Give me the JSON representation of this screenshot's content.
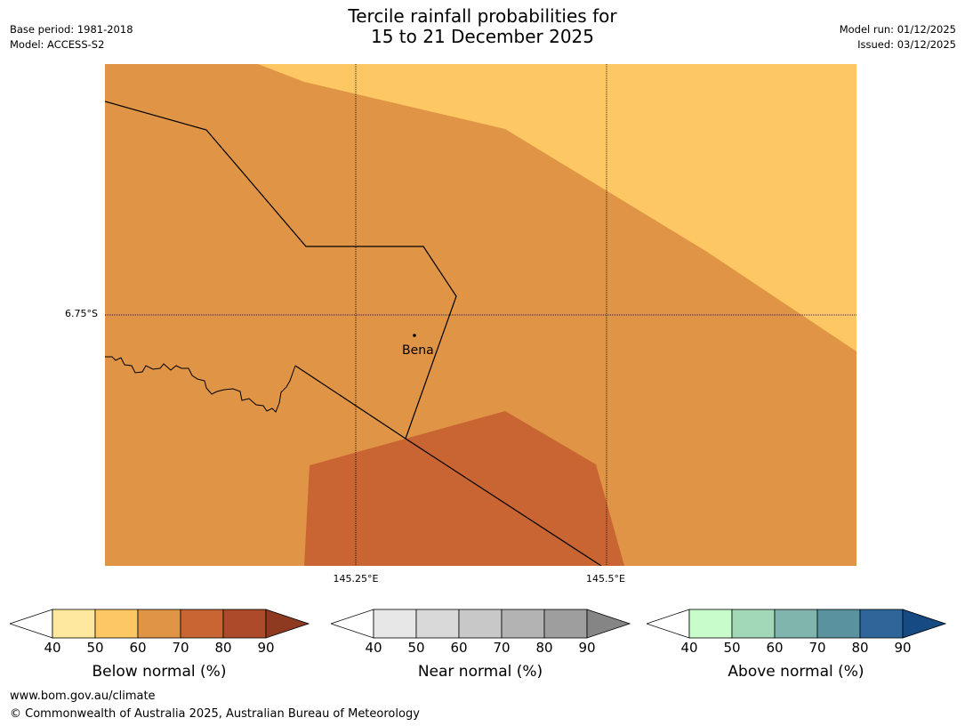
{
  "title": {
    "line1": "Tercile rainfall probabilities for",
    "line2": "15 to 21 December 2025"
  },
  "meta": {
    "base_period": "Base period: 1981-2018",
    "model": "Model: ACCESS-S2",
    "model_run": "Model run: 01/12/2025",
    "issued": "Issued: 03/12/2025"
  },
  "map": {
    "lat_label": "6.75°S",
    "lon_labels": [
      "145.25°E",
      "145.5°E"
    ],
    "place_label": "Bena",
    "colors": {
      "below_50_60": "#fdc863",
      "below_60_70": "#e09446",
      "below_70_80": "#c96532",
      "boundary": "#000000"
    }
  },
  "colorbars": [
    {
      "title": "Below normal (%)",
      "ticks": [
        "40",
        "50",
        "60",
        "70",
        "80",
        "90"
      ],
      "colors": [
        "#fee89e",
        "#fdc863",
        "#e09446",
        "#c96532",
        "#ac4a29"
      ],
      "over_color": "#8e3a20"
    },
    {
      "title": "Near normal (%)",
      "ticks": [
        "40",
        "50",
        "60",
        "70",
        "80",
        "90"
      ],
      "colors": [
        "#e7e7e7",
        "#d9d9d9",
        "#c8c8c8",
        "#b3b3b3",
        "#9e9e9e"
      ],
      "over_color": "#858585"
    },
    {
      "title": "Above normal (%)",
      "ticks": [
        "40",
        "50",
        "60",
        "70",
        "80",
        "90"
      ],
      "colors": [
        "#c9fccb",
        "#a2d8b8",
        "#7fb5ad",
        "#5a92a0",
        "#2f6699"
      ],
      "over_color": "#154a83"
    }
  ],
  "footer": {
    "url": "www.bom.gov.au/climate",
    "copyright": "© Commonwealth of Australia 2025, Australian Bureau of Meteorology"
  }
}
